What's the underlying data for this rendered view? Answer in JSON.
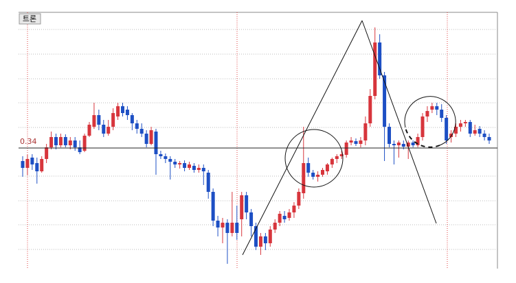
{
  "chart_data": {
    "type": "candlestick",
    "title": "트론",
    "up_color": "#d7353c",
    "down_color": "#1d4fc4",
    "ylim": [
      0.2872,
      0.3988
    ],
    "hline": 0.34,
    "open": [
      0.3343,
      0.3313,
      0.3358,
      0.3334,
      0.3298,
      0.3352,
      0.3403,
      0.3448,
      0.3412,
      0.3448,
      0.3412,
      0.3433,
      0.3403,
      0.3388,
      0.3454,
      0.3493,
      0.3544,
      0.3502,
      0.3463,
      0.3493,
      0.3538,
      0.3583,
      0.3568,
      0.3544,
      0.3508,
      0.3484,
      0.3463,
      0.3418,
      0.3472,
      0.3373,
      0.3364,
      0.3352,
      0.334,
      0.3328,
      0.3334,
      0.3313,
      0.3322,
      0.3304,
      0.3313,
      0.3292,
      0.3208,
      0.3082,
      0.3052,
      0.3073,
      0.3028,
      0.3073,
      0.3088,
      0.3193,
      0.3118,
      0.3058,
      0.2968,
      0.3013,
      0.2983,
      0.3043,
      0.3073,
      0.3103,
      0.3094,
      0.3118,
      0.3148,
      0.3202,
      0.3334,
      0.3292,
      0.3274,
      0.3283,
      0.3298,
      0.3328,
      0.3352,
      0.3364,
      0.337,
      0.3424,
      0.343,
      0.3418,
      0.3433,
      0.3508,
      0.3628,
      0.3862,
      0.3718,
      0.3493,
      0.3418,
      0.3412,
      0.3418,
      0.3406,
      0.3424,
      0.3412,
      0.3448,
      0.3538,
      0.3568,
      0.3583,
      0.3568,
      0.3532,
      0.3448,
      0.3463,
      0.3493,
      0.3508,
      0.3514,
      0.3463,
      0.3484,
      0.3463,
      0.3448
    ],
    "close": [
      0.3313,
      0.3352,
      0.3328,
      0.3298,
      0.3352,
      0.3403,
      0.3448,
      0.3412,
      0.3448,
      0.3412,
      0.3433,
      0.3403,
      0.3382,
      0.3454,
      0.3502,
      0.3544,
      0.3502,
      0.3463,
      0.3493,
      0.3553,
      0.3583,
      0.3553,
      0.3544,
      0.3508,
      0.3484,
      0.3463,
      0.3418,
      0.3478,
      0.3373,
      0.3364,
      0.3352,
      0.334,
      0.3328,
      0.3334,
      0.3313,
      0.3328,
      0.3304,
      0.3313,
      0.3298,
      0.3208,
      0.3082,
      0.3052,
      0.3073,
      0.3028,
      0.3073,
      0.3028,
      0.3193,
      0.3118,
      0.3058,
      0.2968,
      0.3013,
      0.2983,
      0.3043,
      0.3073,
      0.3112,
      0.3088,
      0.3118,
      0.3148,
      0.3208,
      0.3334,
      0.3292,
      0.3274,
      0.3283,
      0.3304,
      0.3328,
      0.3352,
      0.3364,
      0.3373,
      0.3424,
      0.3433,
      0.3418,
      0.3433,
      0.3508,
      0.3628,
      0.3862,
      0.3718,
      0.3493,
      0.3418,
      0.3412,
      0.3424,
      0.3406,
      0.3424,
      0.3412,
      0.3448,
      0.3538,
      0.3562,
      0.3583,
      0.3568,
      0.3532,
      0.3433,
      0.3463,
      0.3493,
      0.3508,
      0.3514,
      0.3463,
      0.3478,
      0.3463,
      0.3448,
      0.3433
    ],
    "high": [
      0.3364,
      0.337,
      0.3373,
      0.3358,
      0.3364,
      0.3418,
      0.3472,
      0.3463,
      0.3463,
      0.346,
      0.3448,
      0.3448,
      0.3433,
      0.3463,
      0.3514,
      0.3598,
      0.3568,
      0.3523,
      0.3523,
      0.3574,
      0.3598,
      0.3598,
      0.3583,
      0.3553,
      0.3523,
      0.3508,
      0.3478,
      0.3493,
      0.3484,
      0.3388,
      0.3376,
      0.3364,
      0.3352,
      0.3343,
      0.3346,
      0.334,
      0.3334,
      0.3328,
      0.3328,
      0.3304,
      0.3223,
      0.3103,
      0.3094,
      0.3088,
      0.3208,
      0.3148,
      0.3208,
      0.3208,
      0.3133,
      0.3073,
      0.3028,
      0.3028,
      0.3058,
      0.3088,
      0.3124,
      0.3124,
      0.3133,
      0.3163,
      0.3223,
      0.3493,
      0.3358,
      0.3304,
      0.3298,
      0.3313,
      0.3334,
      0.3358,
      0.3373,
      0.3388,
      0.3433,
      0.3448,
      0.3442,
      0.3448,
      0.3538,
      0.3658,
      0.3928,
      0.3898,
      0.3733,
      0.3508,
      0.3433,
      0.3433,
      0.3433,
      0.3433,
      0.3433,
      0.3463,
      0.3553,
      0.3583,
      0.3598,
      0.3598,
      0.3592,
      0.3544,
      0.3478,
      0.3508,
      0.3523,
      0.3523,
      0.3523,
      0.3502,
      0.3496,
      0.3478,
      0.3463
    ],
    "low": [
      0.3274,
      0.3283,
      0.3304,
      0.3244,
      0.3292,
      0.3334,
      0.3394,
      0.3394,
      0.3403,
      0.3403,
      0.3394,
      0.3388,
      0.3373,
      0.3382,
      0.3448,
      0.3484,
      0.3478,
      0.3448,
      0.3454,
      0.3478,
      0.3523,
      0.3538,
      0.3523,
      0.3478,
      0.3463,
      0.3448,
      0.3403,
      0.3412,
      0.3283,
      0.3352,
      0.3334,
      0.3262,
      0.3313,
      0.331,
      0.3298,
      0.3304,
      0.3292,
      0.3292,
      0.3238,
      0.3178,
      0.3058,
      0.3013,
      0.2983,
      0.2893,
      0.3013,
      0.2998,
      0.3013,
      0.3088,
      0.3013,
      0.2953,
      0.2932,
      0.2953,
      0.2968,
      0.3028,
      0.3058,
      0.3073,
      0.3082,
      0.3094,
      0.3133,
      0.3178,
      0.3274,
      0.3262,
      0.3253,
      0.3274,
      0.3283,
      0.3313,
      0.3334,
      0.3352,
      0.3358,
      0.3412,
      0.3409,
      0.3403,
      0.3412,
      0.3493,
      0.3613,
      0.3703,
      0.3343,
      0.3403,
      0.3328,
      0.3358,
      0.3394,
      0.3352,
      0.3403,
      0.3403,
      0.3433,
      0.3514,
      0.3553,
      0.3544,
      0.3514,
      0.3418,
      0.3424,
      0.3448,
      0.3472,
      0.3493,
      0.3448,
      0.3454,
      0.3448,
      0.3433,
      0.3418
    ]
  }
}
